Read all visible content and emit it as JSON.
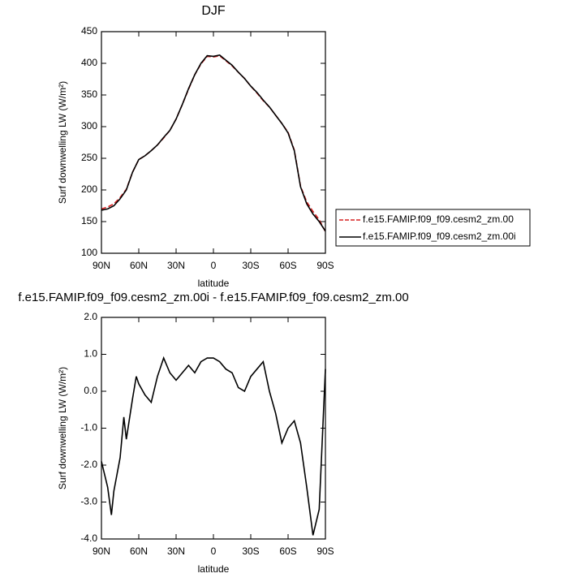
{
  "chart_data": [
    {
      "type": "line",
      "title": "DJF",
      "xlabel": "latitude",
      "ylabel": "Surf downwelling LW (W/m²)",
      "x": [
        90,
        85,
        80,
        75,
        70,
        65,
        60,
        55,
        50,
        45,
        40,
        35,
        30,
        25,
        20,
        15,
        10,
        5,
        0,
        -5,
        -10,
        -15,
        -20,
        -25,
        -30,
        -35,
        -40,
        -45,
        -50,
        -55,
        -60,
        -65,
        -70,
        -75,
        -80,
        -85,
        -90
      ],
      "xlim": [
        90,
        -90
      ],
      "xticks": [
        {
          "value": 90,
          "label": "90N"
        },
        {
          "value": 60,
          "label": "60N"
        },
        {
          "value": 30,
          "label": "30N"
        },
        0,
        {
          "value": -30,
          "label": "30S"
        },
        {
          "value": -60,
          "label": "60S"
        },
        {
          "value": -90,
          "label": "90S"
        }
      ],
      "ylim": [
        100,
        450
      ],
      "yticks": [
        100,
        150,
        200,
        250,
        300,
        350,
        400,
        450
      ],
      "legend": "outside right",
      "series": [
        {
          "name": "f.e15.FAMIP.f09_f09.cesm2_zm.00",
          "color": "#d62020",
          "style": "dashed",
          "values": [
            170,
            173,
            178,
            188,
            201,
            228,
            248,
            254,
            262,
            271,
            282,
            294,
            312,
            335,
            359,
            382,
            399,
            411,
            410,
            412,
            404,
            396,
            386,
            376,
            364,
            353,
            341,
            331,
            318,
            305,
            291,
            263,
            206,
            181,
            166,
            153,
            134
          ]
        },
        {
          "name": "f.e15.FAMIP.f09_f09.cesm2_zm.00i",
          "color": "#000000",
          "style": "solid",
          "values": [
            168,
            170,
            175,
            186,
            200,
            228,
            248,
            254,
            262,
            271,
            283,
            294,
            312,
            335,
            360,
            382,
            400,
            412,
            411,
            413,
            405,
            397,
            386,
            376,
            364,
            354,
            342,
            331,
            318,
            305,
            290,
            262,
            205,
            178,
            162,
            150,
            135
          ]
        }
      ]
    },
    {
      "type": "line",
      "title": "f.e15.FAMIP.f09_f09.cesm2_zm.00i - f.e15.FAMIP.f09_f09.cesm2_zm.00",
      "xlabel": "latitude",
      "ylabel": "Surf downwelling LW (W/m²)",
      "x": [
        90,
        85,
        82,
        80,
        75,
        72,
        70,
        65,
        62,
        60,
        55,
        50,
        45,
        40,
        35,
        30,
        25,
        20,
        15,
        10,
        5,
        0,
        -5,
        -10,
        -15,
        -20,
        -25,
        -30,
        -35,
        -40,
        -45,
        -50,
        -55,
        -60,
        -65,
        -70,
        -75,
        -80,
        -85,
        -90
      ],
      "xlim": [
        90,
        -90
      ],
      "xticks": [
        {
          "value": 90,
          "label": "90N"
        },
        {
          "value": 60,
          "label": "60N"
        },
        {
          "value": 30,
          "label": "30N"
        },
        0,
        {
          "value": -30,
          "label": "30S"
        },
        {
          "value": -60,
          "label": "60S"
        },
        {
          "value": -90,
          "label": "90S"
        }
      ],
      "ylim": [
        -4,
        2
      ],
      "yticks": [
        {
          "value": -4,
          "label": "-4.0"
        },
        {
          "value": -3,
          "label": "-3.0"
        },
        {
          "value": -2,
          "label": "-2.0"
        },
        {
          "value": -1,
          "label": "-1.0"
        },
        {
          "value": 0,
          "label": "0.0"
        },
        {
          "value": 1,
          "label": "1.0"
        },
        {
          "value": 2,
          "label": "2.0"
        }
      ],
      "series": [
        {
          "color": "#000000",
          "style": "solid",
          "values": [
            -1.9,
            -2.6,
            -3.35,
            -2.7,
            -1.8,
            -0.7,
            -1.3,
            -0.2,
            0.4,
            0.2,
            -0.1,
            -0.3,
            0.4,
            0.9,
            0.5,
            0.3,
            0.5,
            0.7,
            0.5,
            0.8,
            0.9,
            0.9,
            0.8,
            0.6,
            0.5,
            0.1,
            0.0,
            0.4,
            0.6,
            0.8,
            0.0,
            -0.6,
            -1.4,
            -1.0,
            -0.8,
            -1.4,
            -2.6,
            -3.9,
            -3.2,
            0.6
          ]
        }
      ]
    }
  ]
}
